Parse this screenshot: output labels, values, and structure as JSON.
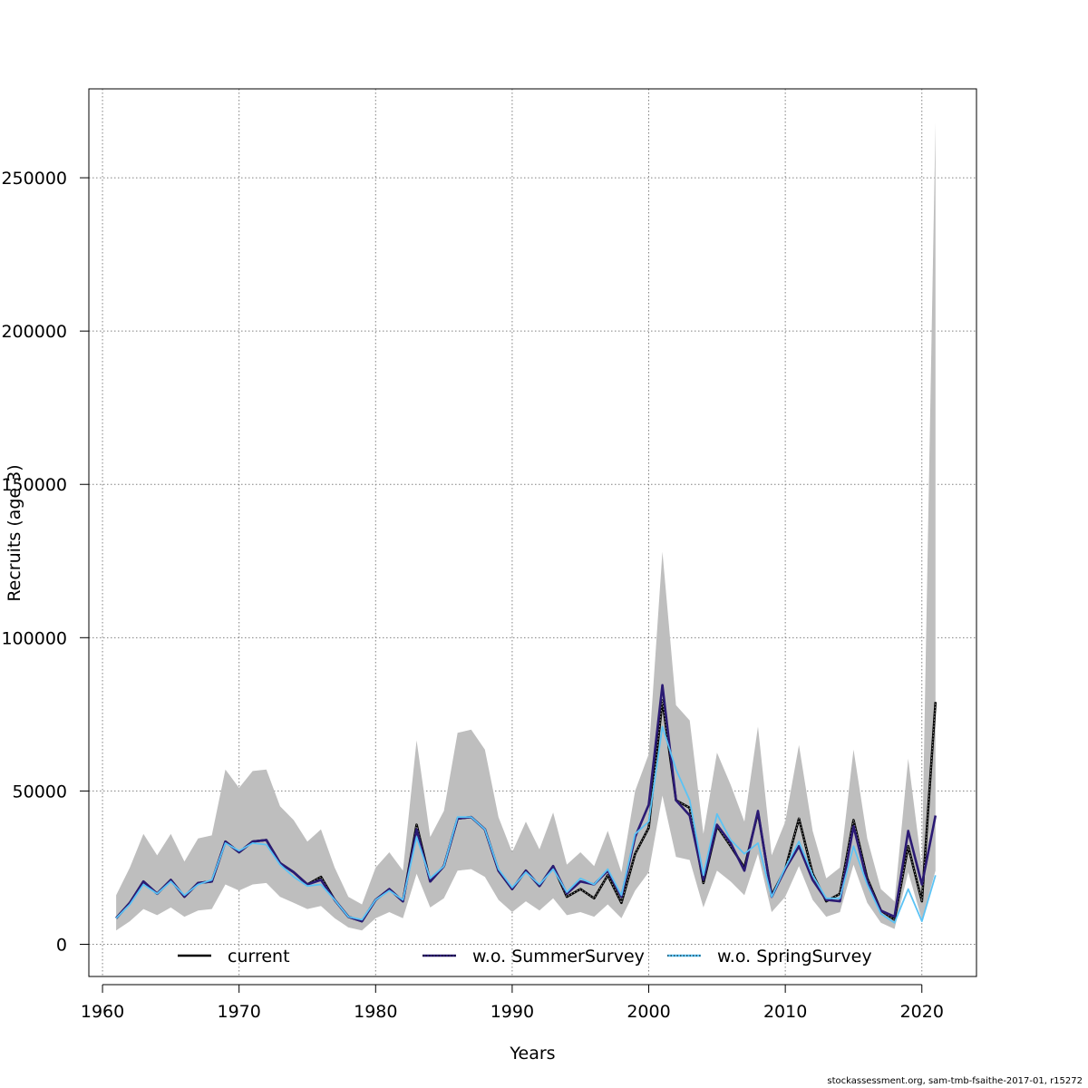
{
  "chart_data": {
    "type": "line",
    "xlabel": "Years",
    "ylabel": "Recruits (age 3)",
    "xlim": [
      1959,
      2024
    ],
    "ylim": [
      -10500,
      279000
    ],
    "xticks": [
      1960,
      1970,
      1980,
      1990,
      2000,
      2010,
      2020
    ],
    "yticks": [
      0,
      50000,
      100000,
      150000,
      200000,
      250000
    ],
    "ytick_labels": [
      "0",
      "50000",
      "100000",
      "150000",
      "200000",
      "250000"
    ],
    "grid": true,
    "legend_position": "bottom",
    "x": [
      1961,
      1962,
      1963,
      1964,
      1965,
      1966,
      1967,
      1968,
      1969,
      1970,
      1971,
      1972,
      1973,
      1974,
      1975,
      1976,
      1977,
      1978,
      1979,
      1980,
      1981,
      1982,
      1983,
      1984,
      1985,
      1986,
      1987,
      1988,
      1989,
      1990,
      1991,
      1992,
      1993,
      1994,
      1995,
      1996,
      1997,
      1998,
      1999,
      2000,
      2001,
      2002,
      2003,
      2004,
      2005,
      2006,
      2007,
      2008,
      2009,
      2010,
      2011,
      2012,
      2013,
      2014,
      2015,
      2016,
      2017,
      2018,
      2019,
      2020,
      2021
    ],
    "confidence_band": {
      "color": "#bebebe",
      "upper": [
        16000,
        25000,
        36000,
        29000,
        36000,
        27000,
        34500,
        35500,
        57000,
        51000,
        56500,
        57000,
        45000,
        40500,
        33500,
        37500,
        25000,
        15500,
        13000,
        25000,
        30000,
        24000,
        66500,
        35000,
        43500,
        69000,
        70000,
        63500,
        41500,
        30000,
        40000,
        31000,
        43000,
        26000,
        30000,
        25500,
        37000,
        23500,
        50000,
        62000,
        128000,
        78000,
        73000,
        36000,
        62500,
        52000,
        40000,
        71000,
        29000,
        40000,
        65000,
        37000,
        21500,
        25000,
        63500,
        34500,
        18000,
        14000,
        60500,
        25000,
        268000
      ],
      "lower": [
        4500,
        7500,
        11500,
        9500,
        12000,
        9000,
        11000,
        11500,
        19500,
        17500,
        19500,
        20000,
        15500,
        13500,
        11500,
        12500,
        8500,
        5500,
        4500,
        8500,
        10500,
        8500,
        23000,
        12000,
        15000,
        24000,
        24500,
        22000,
        14500,
        10500,
        14000,
        11000,
        15000,
        9500,
        10500,
        9000,
        13000,
        8500,
        17500,
        23500,
        48500,
        28500,
        27500,
        12000,
        24000,
        20500,
        16000,
        29500,
        10500,
        15500,
        25500,
        14500,
        9000,
        10500,
        26000,
        13500,
        7000,
        5000,
        23500,
        8000,
        24000
      ]
    },
    "series": [
      {
        "name": "current",
        "color": "#000000",
        "style": "solid",
        "values": [
          8500,
          13500,
          20500,
          16500,
          21000,
          15500,
          20000,
          20500,
          33500,
          30000,
          33500,
          34000,
          26500,
          23500,
          19500,
          22000,
          14500,
          9000,
          7500,
          14500,
          18000,
          14000,
          39000,
          20500,
          25500,
          41000,
          41500,
          37500,
          24000,
          18000,
          24000,
          19000,
          25500,
          15500,
          18000,
          15000,
          22500,
          13500,
          29500,
          38000,
          79500,
          47000,
          44500,
          20000,
          38500,
          32000,
          25000,
          43000,
          16000,
          24500,
          41000,
          23000,
          14000,
          16500,
          40500,
          21500,
          11000,
          8000,
          32000,
          14000,
          79000
        ]
      },
      {
        "name": "w.o. SummerSurvey",
        "color": "#2b1a74",
        "style": "solid",
        "values": [
          8500,
          13500,
          20500,
          16500,
          21000,
          15500,
          20000,
          20500,
          33500,
          30000,
          33500,
          34000,
          26500,
          23500,
          19500,
          21000,
          14500,
          9000,
          7500,
          14500,
          18000,
          14000,
          37500,
          20500,
          25500,
          41000,
          41500,
          37500,
          24000,
          18000,
          24000,
          19000,
          25500,
          16500,
          20500,
          19500,
          24000,
          15500,
          35000,
          45500,
          84500,
          47000,
          42000,
          21000,
          39000,
          33000,
          24000,
          43500,
          15500,
          24500,
          32000,
          21000,
          14500,
          14000,
          38500,
          20500,
          11000,
          9000,
          37000,
          19500,
          42000
        ]
      },
      {
        "name": "w.o. SpringSurvey",
        "color": "#5bc3f5",
        "style": "dotted",
        "values": [
          8500,
          13000,
          19500,
          16500,
          20500,
          16000,
          19500,
          21000,
          33000,
          30500,
          33000,
          32500,
          26000,
          22000,
          19000,
          19500,
          14500,
          9000,
          8000,
          14500,
          17500,
          14500,
          35000,
          21500,
          25500,
          41500,
          41500,
          37500,
          24500,
          18500,
          23500,
          19500,
          24500,
          17000,
          21500,
          19500,
          24500,
          16000,
          36000,
          40000,
          71000,
          57000,
          47000,
          22500,
          42500,
          34000,
          29500,
          33000,
          15500,
          25000,
          33500,
          22500,
          15000,
          15000,
          32000,
          19500,
          10000,
          7000,
          18000,
          7500,
          22500
        ]
      }
    ]
  },
  "footer": "stockassessment.org, sam-tmb-fsaithe-2017-01, r15272"
}
